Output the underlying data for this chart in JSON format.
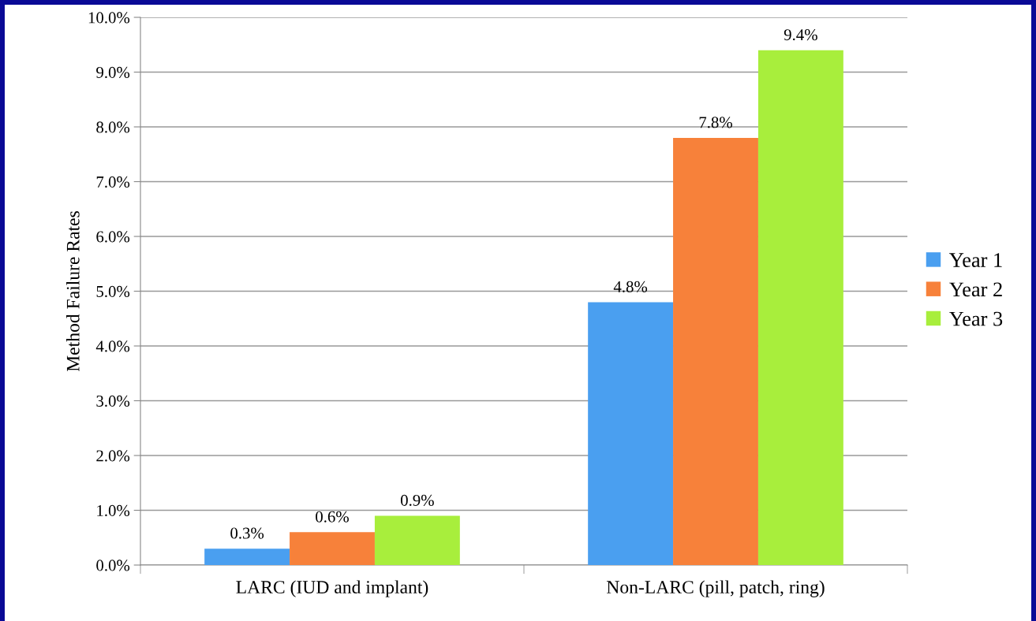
{
  "chart_data": {
    "type": "bar",
    "ylabel": "Method Failure Rates",
    "categories": [
      "LARC (IUD and implant)",
      "Non-LARC (pill, patch, ring)"
    ],
    "series": [
      {
        "name": "Year 1",
        "color": "#4a9ff0",
        "values": [
          0.3,
          4.8
        ]
      },
      {
        "name": "Year 2",
        "color": "#f7813a",
        "values": [
          0.6,
          7.8
        ]
      },
      {
        "name": "Year 3",
        "color": "#a8ee3c",
        "values": [
          0.9,
          9.4
        ]
      }
    ],
    "value_labels": [
      [
        "0.3%",
        "4.8%"
      ],
      [
        "0.6%",
        "7.8%"
      ],
      [
        "0.9%",
        "9.4%"
      ]
    ],
    "ylim": [
      0,
      10
    ],
    "yticks": [
      {
        "value": 0,
        "label": "0.0%"
      },
      {
        "value": 1,
        "label": "1.0%"
      },
      {
        "value": 2,
        "label": "2.0%"
      },
      {
        "value": 3,
        "label": "3.0%"
      },
      {
        "value": 4,
        "label": "4.0%"
      },
      {
        "value": 5,
        "label": "5.0%"
      },
      {
        "value": 6,
        "label": "6.0%"
      },
      {
        "value": 7,
        "label": "7.0%"
      },
      {
        "value": 8,
        "label": "8.0%"
      },
      {
        "value": 9,
        "label": "9.0%"
      },
      {
        "value": 10,
        "label": "10.0%"
      }
    ],
    "grid": "y",
    "legend": "right"
  }
}
